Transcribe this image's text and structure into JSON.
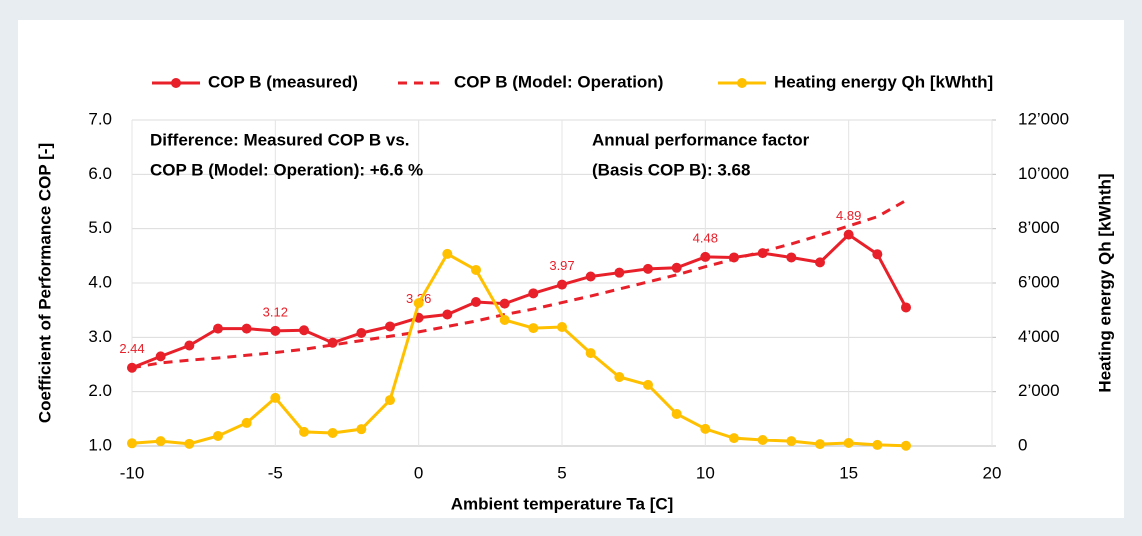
{
  "chart_data": {
    "type": "line",
    "x": [
      -10,
      -9,
      -8,
      -7,
      -6,
      -5,
      -4,
      -3,
      -2,
      -1,
      0,
      1,
      2,
      3,
      4,
      5,
      6,
      7,
      8,
      9,
      10,
      11,
      12,
      13,
      14,
      15,
      16,
      17
    ],
    "series": [
      {
        "name": "COP B (measured)",
        "color": "#e8202a",
        "style": "solid-markers",
        "values": [
          2.44,
          2.65,
          2.85,
          3.16,
          3.16,
          3.12,
          3.13,
          2.9,
          3.08,
          3.2,
          3.36,
          3.42,
          3.65,
          3.62,
          3.81,
          3.97,
          4.12,
          4.19,
          4.26,
          4.28,
          4.48,
          4.47,
          4.55,
          4.47,
          4.38,
          4.89,
          4.53,
          3.55
        ],
        "value_labels": [
          "2.44",
          null,
          null,
          null,
          null,
          "3.12",
          null,
          null,
          null,
          null,
          "3.36",
          null,
          null,
          null,
          null,
          "3.97",
          null,
          null,
          null,
          null,
          "4.48",
          null,
          null,
          null,
          null,
          "4.89",
          null,
          null
        ]
      },
      {
        "name": "COP B (Model: Operation)",
        "color": "#e8202a",
        "style": "dashed",
        "values": [
          2.44,
          2.53,
          2.58,
          2.62,
          2.67,
          2.72,
          2.78,
          2.86,
          2.94,
          3.02,
          3.1,
          3.2,
          3.3,
          3.42,
          3.52,
          3.64,
          3.76,
          3.89,
          4.02,
          4.15,
          4.3,
          4.44,
          4.58,
          4.72,
          4.88,
          5.05,
          5.22,
          5.52
        ]
      },
      {
        "name": "Heating energy Qh [kWhth]",
        "color": "#ffc000",
        "style": "solid-markers",
        "axis": "y2",
        "values": [
          100,
          180,
          80,
          370,
          850,
          1770,
          520,
          480,
          620,
          1690,
          5260,
          7070,
          6480,
          4640,
          4340,
          4380,
          3420,
          2540,
          2250,
          1180,
          630,
          290,
          220,
          180,
          70,
          110,
          40,
          10
        ]
      }
    ],
    "xlabel": "Ambient temperature Ta [C]",
    "ylabel": "Coefficient of Performance COP [-]",
    "y2label": "Heating energy Qh [kWhth]",
    "xlim": [
      -10,
      20
    ],
    "xticks": [
      -10,
      -5,
      0,
      5,
      10,
      15,
      20
    ],
    "ylim": [
      1,
      7
    ],
    "yticks": [
      {
        "value": 1,
        "label": "1.0"
      },
      {
        "value": 2,
        "label": "2.0"
      },
      {
        "value": 3,
        "label": "3.0"
      },
      {
        "value": 4,
        "label": "4.0"
      },
      {
        "value": 5,
        "label": "5.0"
      },
      {
        "value": 6,
        "label": "6.0"
      },
      {
        "value": 7,
        "label": "7.0"
      }
    ],
    "y2lim": [
      0,
      12000
    ],
    "y2ticks": [
      0,
      {
        "value": 2000,
        "label": "2’000"
      },
      {
        "value": 4000,
        "label": "4’000"
      },
      {
        "value": 6000,
        "label": "6’000"
      },
      {
        "value": 8000,
        "label": "8’000"
      },
      {
        "value": 10000,
        "label": "10’000"
      },
      {
        "value": 12000,
        "label": "12’000"
      }
    ],
    "annotations": [
      {
        "lines": [
          "Difference: Measured COP B vs.",
          "COP B (Model: Operation): +6.6 %"
        ]
      },
      {
        "lines": [
          "Annual performance factor",
          "(Basis COP B): 3.68"
        ]
      }
    ],
    "grid": true,
    "legend": "top"
  }
}
